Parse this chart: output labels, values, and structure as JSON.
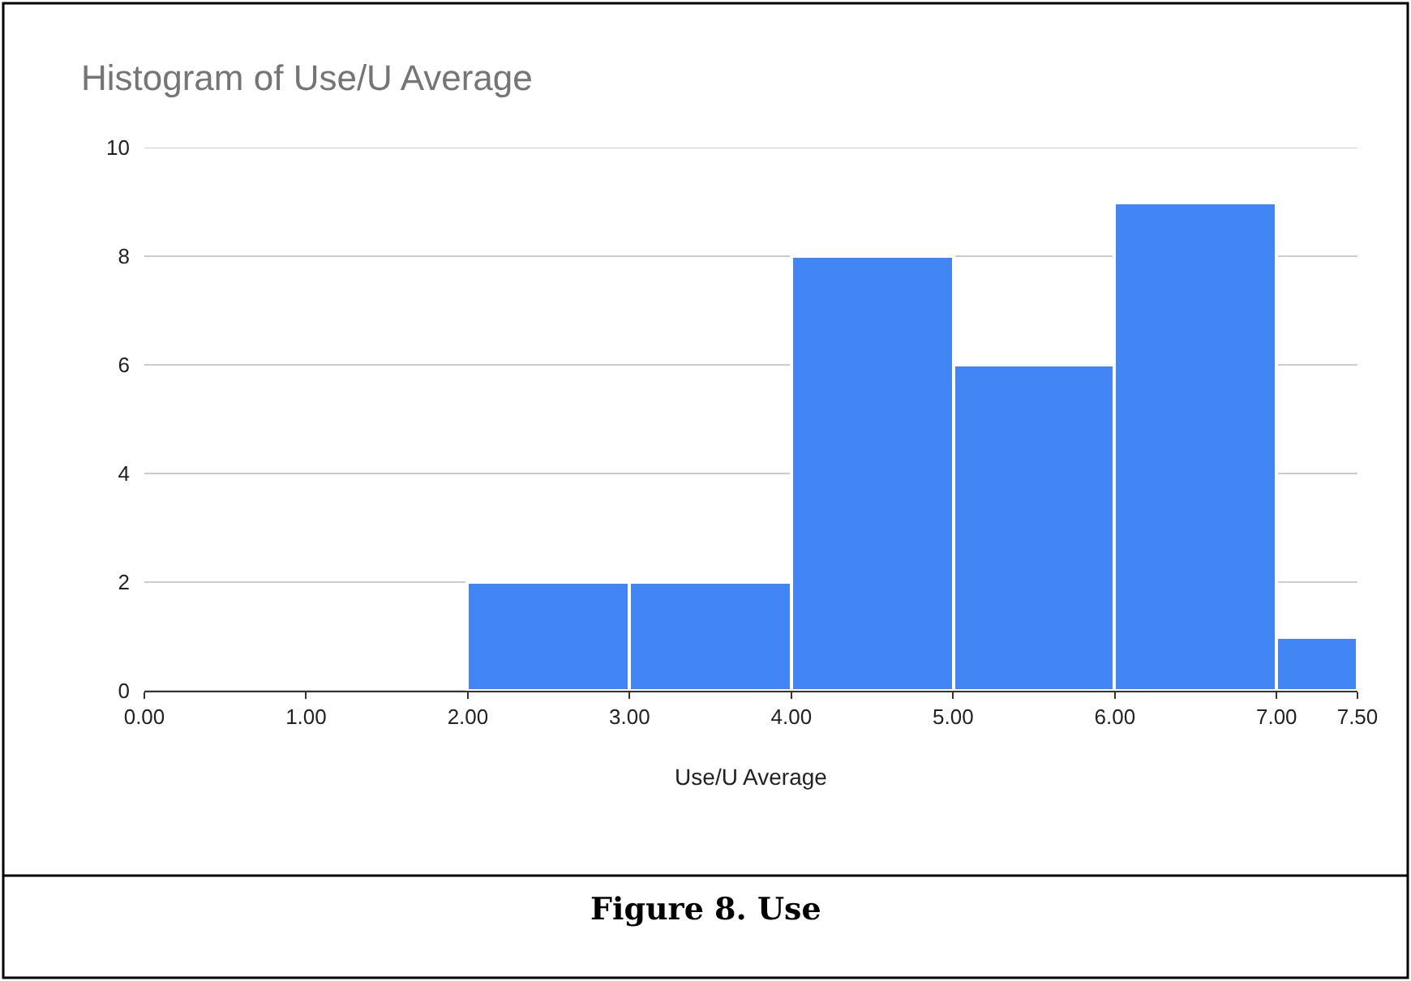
{
  "chart_data": {
    "type": "histogram",
    "title": "Histogram of Use/U Average",
    "xlabel": "Use/U Average",
    "bins": [
      2,
      3,
      4,
      5,
      6,
      7,
      7.5
    ],
    "values": [
      2,
      2,
      8,
      6,
      9,
      1
    ],
    "color": "#4285f4",
    "xlim": [
      0,
      7.5
    ],
    "xticks": [
      {
        "value": 0,
        "label": "0.00"
      },
      {
        "value": 1,
        "label": "1.00"
      },
      {
        "value": 2,
        "label": "2.00"
      },
      {
        "value": 3,
        "label": "3.00"
      },
      {
        "value": 4,
        "label": "4.00"
      },
      {
        "value": 5,
        "label": "5.00"
      },
      {
        "value": 6,
        "label": "6.00"
      },
      {
        "value": 7,
        "label": "7.00"
      },
      {
        "value": 7.5,
        "label": "7.50"
      }
    ],
    "ylim": [
      0,
      10
    ],
    "yticks": [
      0,
      2,
      4,
      6,
      8,
      10
    ],
    "grid": "y",
    "annotations": [
      "Figure 8. Use"
    ]
  }
}
